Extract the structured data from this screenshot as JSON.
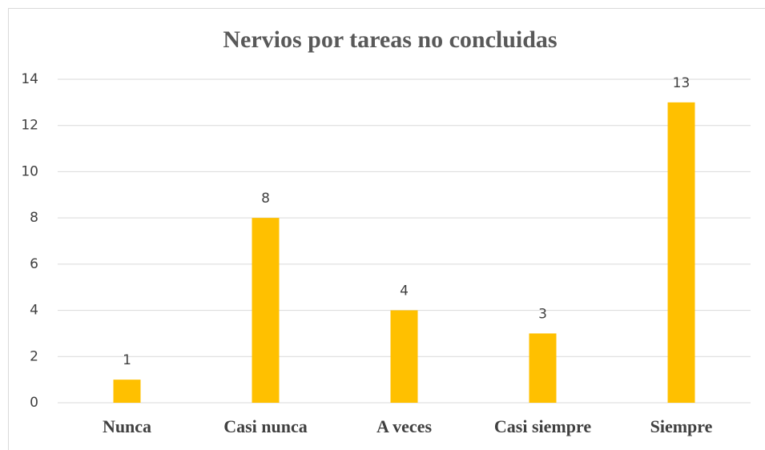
{
  "chart_data": {
    "type": "bar",
    "title": "Nervios por tareas no concluidas",
    "categories": [
      "Nunca",
      "Casi nunca",
      "A veces",
      "Casi siempre",
      "Siempre"
    ],
    "values": [
      1,
      8,
      4,
      3,
      13
    ],
    "color": "#ffc000",
    "ylim": [
      0,
      14
    ],
    "yticks": [
      0,
      2,
      4,
      6,
      8,
      10,
      12,
      14
    ],
    "grid": true,
    "data_labels": true
  }
}
